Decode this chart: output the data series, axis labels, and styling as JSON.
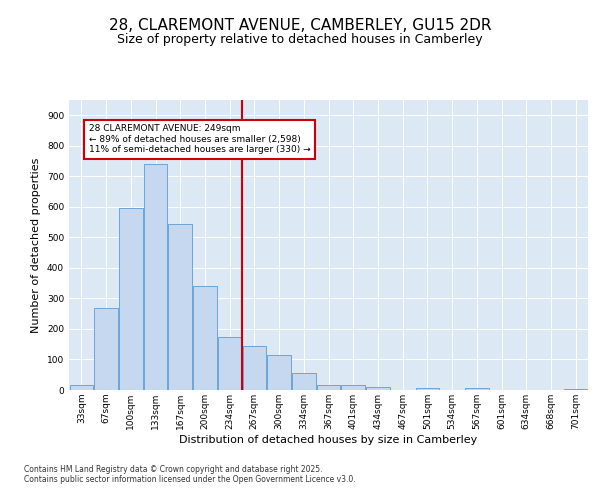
{
  "title": "28, CLAREMONT AVENUE, CAMBERLEY, GU15 2DR",
  "subtitle": "Size of property relative to detached houses in Camberley",
  "xlabel": "Distribution of detached houses by size in Camberley",
  "ylabel": "Number of detached properties",
  "categories": [
    "33sqm",
    "67sqm",
    "100sqm",
    "133sqm",
    "167sqm",
    "200sqm",
    "234sqm",
    "267sqm",
    "300sqm",
    "334sqm",
    "367sqm",
    "401sqm",
    "434sqm",
    "467sqm",
    "501sqm",
    "534sqm",
    "567sqm",
    "601sqm",
    "634sqm",
    "668sqm",
    "701sqm"
  ],
  "bar_values": [
    18,
    270,
    595,
    740,
    545,
    340,
    175,
    145,
    115,
    55,
    18,
    18,
    10,
    0,
    8,
    0,
    6,
    0,
    0,
    0,
    4
  ],
  "bar_color": "#c5d8f0",
  "bar_edge_color": "#5b9bd5",
  "vline_color": "#cc0000",
  "annotation_text": "28 CLAREMONT AVENUE: 249sqm\n← 89% of detached houses are smaller (2,598)\n11% of semi-detached houses are larger (330) →",
  "annotation_box_color": "#cc0000",
  "annotation_bg": "#ffffff",
  "ylim": [
    0,
    950
  ],
  "yticks": [
    0,
    100,
    200,
    300,
    400,
    500,
    600,
    700,
    800,
    900
  ],
  "plot_bg": "#dce9f5",
  "footer_line1": "Contains HM Land Registry data © Crown copyright and database right 2025.",
  "footer_line2": "Contains public sector information licensed under the Open Government Licence v3.0.",
  "title_fontsize": 11,
  "subtitle_fontsize": 9,
  "tick_fontsize": 6.5,
  "xlabel_fontsize": 8,
  "ylabel_fontsize": 8,
  "footer_fontsize": 5.5
}
